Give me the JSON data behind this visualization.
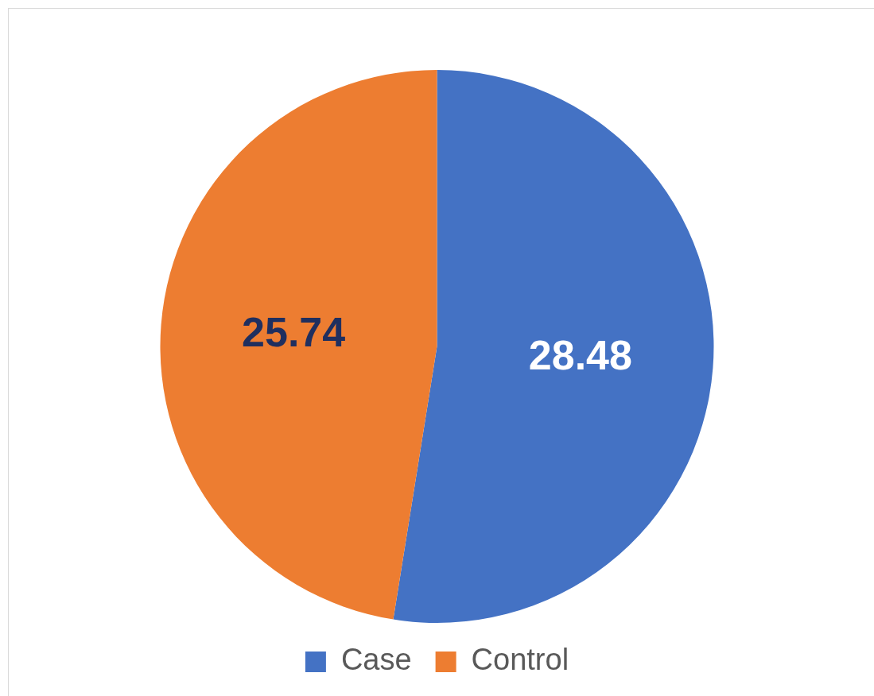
{
  "chart_data": {
    "type": "pie",
    "categories": [
      "Case",
      "Control"
    ],
    "values": [
      28.48,
      25.74
    ],
    "colors": [
      "#4472c4",
      "#ed7d31"
    ],
    "data_labels": true,
    "legend": "bottom"
  }
}
